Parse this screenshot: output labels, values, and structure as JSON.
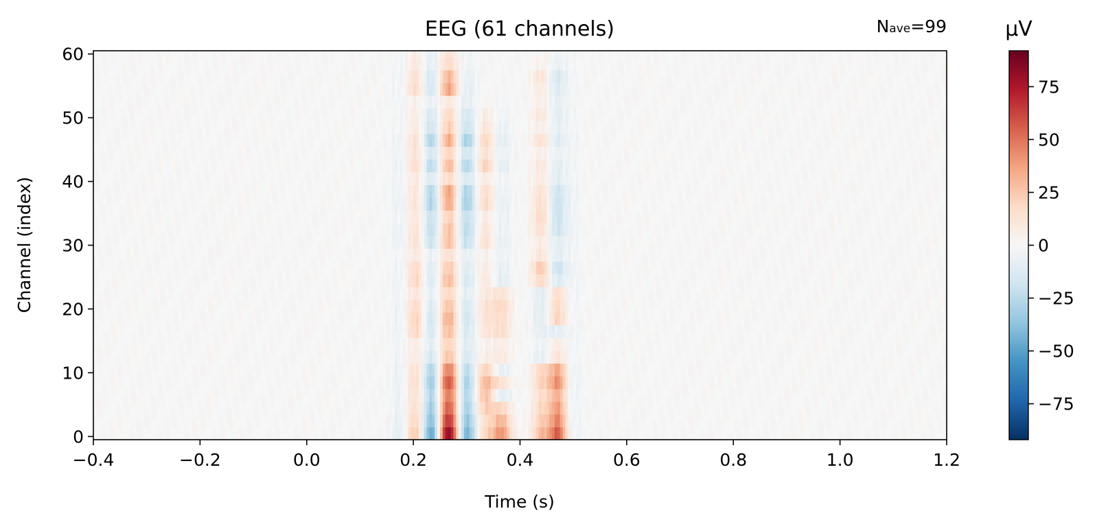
{
  "chart_data": {
    "type": "heatmap",
    "title": "EEG (61 channels)",
    "annotation": {
      "base": "N",
      "subscript": "ave",
      "suffix": "=99"
    },
    "xlabel": "Time (s)",
    "ylabel": "Channel (index)",
    "xlim": [
      -0.4,
      1.2
    ],
    "ylim": [
      -0.5,
      60.5
    ],
    "x_ticks": [
      -0.4,
      -0.2,
      0.0,
      0.2,
      0.4,
      0.6,
      0.8,
      1.0,
      1.2
    ],
    "x_tick_labels": [
      "−0.4",
      "−0.2",
      "0.0",
      "0.2",
      "0.4",
      "0.6",
      "0.8",
      "1.0",
      "1.2"
    ],
    "y_ticks": [
      0,
      10,
      20,
      30,
      40,
      50,
      60
    ],
    "y_tick_labels": [
      "0",
      "10",
      "20",
      "30",
      "40",
      "50",
      "60"
    ],
    "colorbar": {
      "label": "µV",
      "colormap": "RdBu_r",
      "range": [
        -92,
        92
      ],
      "ticks": [
        -75,
        -50,
        -25,
        0,
        25,
        50,
        75
      ],
      "tick_labels": [
        "−75",
        "−50",
        "−25",
        "0",
        "25",
        "50",
        "75"
      ],
      "colors": [
        "#053061",
        "#2166ac",
        "#4393c3",
        "#92c5de",
        "#d1e5f0",
        "#f7f7f7",
        "#fddbc7",
        "#f4a582",
        "#d6604d",
        "#b2182b",
        "#67001f"
      ]
    },
    "n_channels": 61,
    "component_times": [
      0.175,
      0.205,
      0.235,
      0.265,
      0.3,
      0.335,
      0.365,
      0.44,
      0.47,
      0.5
    ],
    "component_widths": [
      0.012,
      0.013,
      0.014,
      0.014,
      0.013,
      0.013,
      0.013,
      0.012,
      0.012,
      0.01
    ],
    "component_amplitudes": [
      [
        -10,
        28,
        -55,
        88,
        -45,
        18,
        40,
        28,
        55,
        -5
      ],
      [
        -8,
        22,
        -45,
        72,
        -38,
        15,
        30,
        22,
        45,
        -5
      ],
      [
        -6,
        18,
        -38,
        60,
        -32,
        22,
        18,
        18,
        38,
        -5
      ],
      [
        -6,
        16,
        -32,
        52,
        -28,
        28,
        -10,
        15,
        32,
        -5
      ],
      [
        -6,
        18,
        -38,
        62,
        -32,
        30,
        12,
        20,
        42,
        -5
      ],
      [
        -6,
        16,
        -32,
        50,
        -26,
        22,
        -8,
        18,
        35,
        -5
      ],
      [
        -4,
        10,
        -18,
        28,
        -15,
        6,
        8,
        -8,
        12,
        -3
      ],
      [
        -4,
        8,
        -12,
        22,
        -12,
        4,
        6,
        -5,
        8,
        -3
      ],
      [
        -5,
        20,
        -18,
        30,
        -15,
        10,
        15,
        -8,
        -8,
        -3
      ],
      [
        -5,
        22,
        -20,
        35,
        -18,
        12,
        15,
        -10,
        20,
        -3
      ],
      [
        -5,
        18,
        -16,
        28,
        -15,
        12,
        18,
        -10,
        18,
        -3
      ],
      [
        -4,
        12,
        -10,
        20,
        -10,
        8,
        12,
        -10,
        15,
        -3
      ],
      [
        -5,
        20,
        -16,
        30,
        -15,
        10,
        -10,
        18,
        -12,
        -3
      ],
      [
        -5,
        18,
        -14,
        25,
        -12,
        8,
        -8,
        25,
        -20,
        -3
      ],
      [
        -3,
        10,
        -8,
        15,
        -8,
        5,
        -5,
        12,
        -10,
        -2
      ],
      [
        -6,
        15,
        -22,
        30,
        -22,
        14,
        -8,
        8,
        -10,
        -3
      ],
      [
        -6,
        14,
        -25,
        30,
        -25,
        12,
        -6,
        14,
        -18,
        -3
      ],
      [
        -4,
        12,
        -22,
        24,
        -22,
        8,
        -6,
        18,
        -20,
        -3
      ],
      [
        -6,
        15,
        -32,
        38,
        -32,
        18,
        -8,
        16,
        -20,
        -3
      ],
      [
        -5,
        14,
        -30,
        40,
        -30,
        16,
        -6,
        14,
        -18,
        -3
      ],
      [
        -4,
        10,
        -14,
        18,
        -14,
        8,
        -4,
        8,
        -10,
        -2
      ],
      [
        -6,
        18,
        -28,
        32,
        -28,
        22,
        -10,
        10,
        -10,
        -3
      ],
      [
        -4,
        14,
        -18,
        22,
        -18,
        14,
        -6,
        6,
        -6,
        -2
      ],
      [
        -5,
        16,
        -32,
        38,
        -32,
        20,
        -10,
        14,
        -12,
        -3
      ],
      [
        -3,
        10,
        -20,
        25,
        -20,
        12,
        -6,
        6,
        -8,
        -2
      ],
      [
        -3,
        8,
        -16,
        20,
        -16,
        8,
        -4,
        10,
        -10,
        -2
      ],
      [
        -3,
        6,
        -8,
        10,
        -8,
        2,
        -2,
        6,
        -8,
        -1
      ],
      [
        -4,
        18,
        -20,
        38,
        -10,
        0,
        0,
        8,
        -12,
        -2
      ],
      [
        -4,
        15,
        -18,
        32,
        -8,
        0,
        0,
        12,
        -15,
        -2
      ],
      [
        -3,
        10,
        -10,
        18,
        -5,
        0,
        0,
        4,
        -6,
        -1
      ],
      [
        -3,
        8,
        -10,
        14,
        -5,
        0,
        0,
        2,
        -4,
        -1
      ]
    ]
  }
}
